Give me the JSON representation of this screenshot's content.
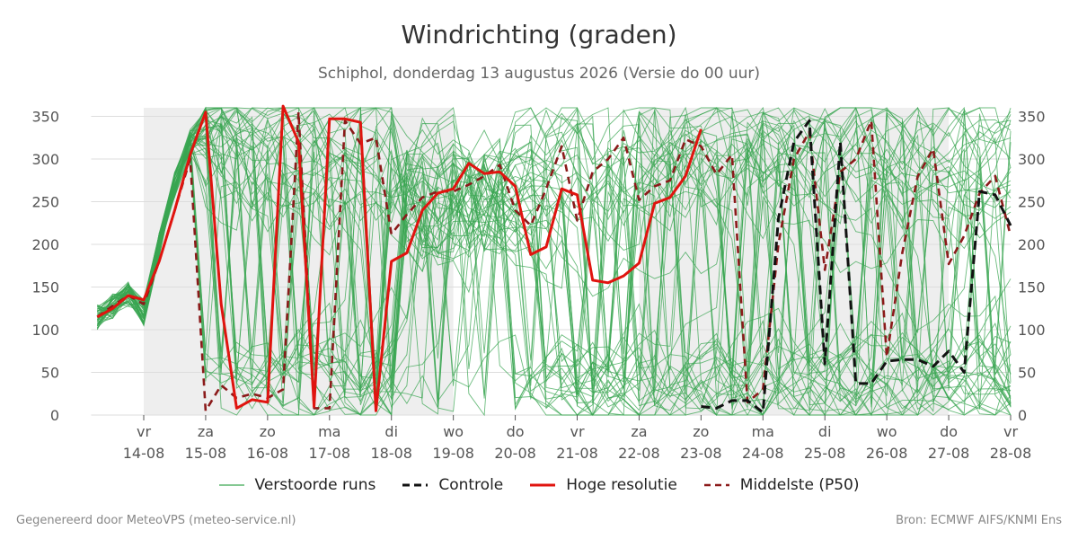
{
  "colors": {
    "ensemble": "#3aa651",
    "control": "#111111",
    "hires": "#e0140f",
    "median": "#8b1a1a",
    "band": "#eeeeee",
    "grid": "#dddddd"
  },
  "legend": {
    "ensemble": "Verstoorde runs",
    "control": "Controle",
    "hires": "Hoge resolutie",
    "median": "Middelste (P50)"
  },
  "footer": {
    "left": "Gegenereerd door MeteoVPS (meteo-service.nl)",
    "right": "Bron: ECMWF AIFS/KNMI Ens"
  },
  "chart_data": {
    "type": "line",
    "title": "Windrichting (graden)",
    "subtitle": "Schiphol, donderdag 13 augustus 2026 (Versie do 00 uur)",
    "ylim": [
      0,
      360
    ],
    "yticks": [
      0,
      50,
      100,
      150,
      200,
      250,
      300,
      350
    ],
    "xlim": [
      -0.85,
      14
    ],
    "grid": true,
    "legend_position": "bottom",
    "x_unit": "days after 14-08 00:00",
    "x_ticks": [
      {
        "x": 0,
        "day": "vr",
        "date": "14-08"
      },
      {
        "x": 1,
        "day": "za",
        "date": "15-08"
      },
      {
        "x": 2,
        "day": "zo",
        "date": "16-08"
      },
      {
        "x": 3,
        "day": "ma",
        "date": "17-08"
      },
      {
        "x": 4,
        "day": "di",
        "date": "18-08"
      },
      {
        "x": 5,
        "day": "wo",
        "date": "19-08"
      },
      {
        "x": 6,
        "day": "do",
        "date": "20-08"
      },
      {
        "x": 7,
        "day": "vr",
        "date": "21-08"
      },
      {
        "x": 8,
        "day": "za",
        "date": "22-08"
      },
      {
        "x": 9,
        "day": "zo",
        "date": "23-08"
      },
      {
        "x": 10,
        "day": "ma",
        "date": "24-08"
      },
      {
        "x": 11,
        "day": "di",
        "date": "25-08"
      },
      {
        "x": 12,
        "day": "wo",
        "date": "26-08"
      },
      {
        "x": 13,
        "day": "do",
        "date": "27-08"
      },
      {
        "x": 14,
        "day": "vr",
        "date": "28-08"
      }
    ],
    "weekend_bands": [
      [
        0,
        5
      ],
      [
        8,
        13
      ]
    ],
    "series": [
      {
        "name": "Hoge resolutie",
        "x": [
          -0.75,
          -0.5,
          -0.25,
          0,
          0.25,
          0.5,
          0.75,
          1,
          1.25,
          1.5,
          1.75,
          2,
          2.25,
          2.5,
          2.75,
          3,
          3.25,
          3.5,
          3.75,
          4,
          4.25,
          4.5,
          4.75,
          5,
          5.25,
          5.5,
          5.75,
          6,
          6.25,
          6.5,
          6.75,
          7,
          7.25,
          7.5,
          7.75,
          8,
          8.25,
          8.5,
          8.75,
          9
        ],
        "y": [
          115,
          125,
          140,
          135,
          180,
          240,
          305,
          355,
          130,
          8,
          18,
          15,
          362,
          320,
          10,
          347,
          347,
          343,
          5,
          180,
          190,
          240,
          260,
          265,
          295,
          283,
          285,
          268,
          188,
          197,
          265,
          258,
          158,
          155,
          163,
          178,
          248,
          255,
          280,
          335
        ]
      },
      {
        "name": "Controle",
        "x": [
          9,
          9.25,
          9.5,
          9.75,
          10,
          10.25,
          10.5,
          10.75,
          11,
          11.25,
          11.5,
          11.75,
          12,
          12.25,
          12.5,
          12.75,
          13,
          13.25,
          13.5,
          13.75,
          14
        ],
        "y": [
          10,
          8,
          17,
          17,
          3,
          230,
          320,
          345,
          60,
          320,
          37,
          37,
          63,
          65,
          65,
          57,
          75,
          50,
          262,
          258,
          222
        ]
      },
      {
        "name": "Middelste (P50)",
        "x": [
          -0.75,
          -0.5,
          -0.25,
          0,
          0.25,
          0.5,
          0.75,
          1,
          1.25,
          1.5,
          1.75,
          2,
          2.25,
          2.5,
          2.75,
          3,
          3.25,
          3.5,
          3.75,
          4,
          4.25,
          4.5,
          4.75,
          5,
          5.25,
          5.5,
          5.75,
          6,
          6.25,
          6.5,
          6.75,
          7,
          7.25,
          7.5,
          7.75,
          8,
          8.25,
          8.5,
          8.75,
          9,
          9.25,
          9.5,
          9.75,
          10,
          10.25,
          10.5,
          10.75,
          11,
          11.25,
          11.5,
          11.75,
          12,
          12.25,
          12.5,
          12.75,
          13,
          13.25,
          13.5,
          13.75,
          14
        ],
        "y": [
          115,
          128,
          140,
          130,
          180,
          240,
          300,
          5,
          35,
          20,
          25,
          20,
          30,
          355,
          8,
          8,
          345,
          318,
          325,
          212,
          235,
          255,
          262,
          262,
          270,
          280,
          293,
          240,
          222,
          265,
          315,
          228,
          285,
          300,
          325,
          252,
          268,
          275,
          323,
          315,
          282,
          305,
          15,
          30,
          200,
          300,
          332,
          170,
          285,
          300,
          345,
          68,
          190,
          280,
          312,
          177,
          210,
          260,
          280,
          210
        ]
      }
    ]
  }
}
